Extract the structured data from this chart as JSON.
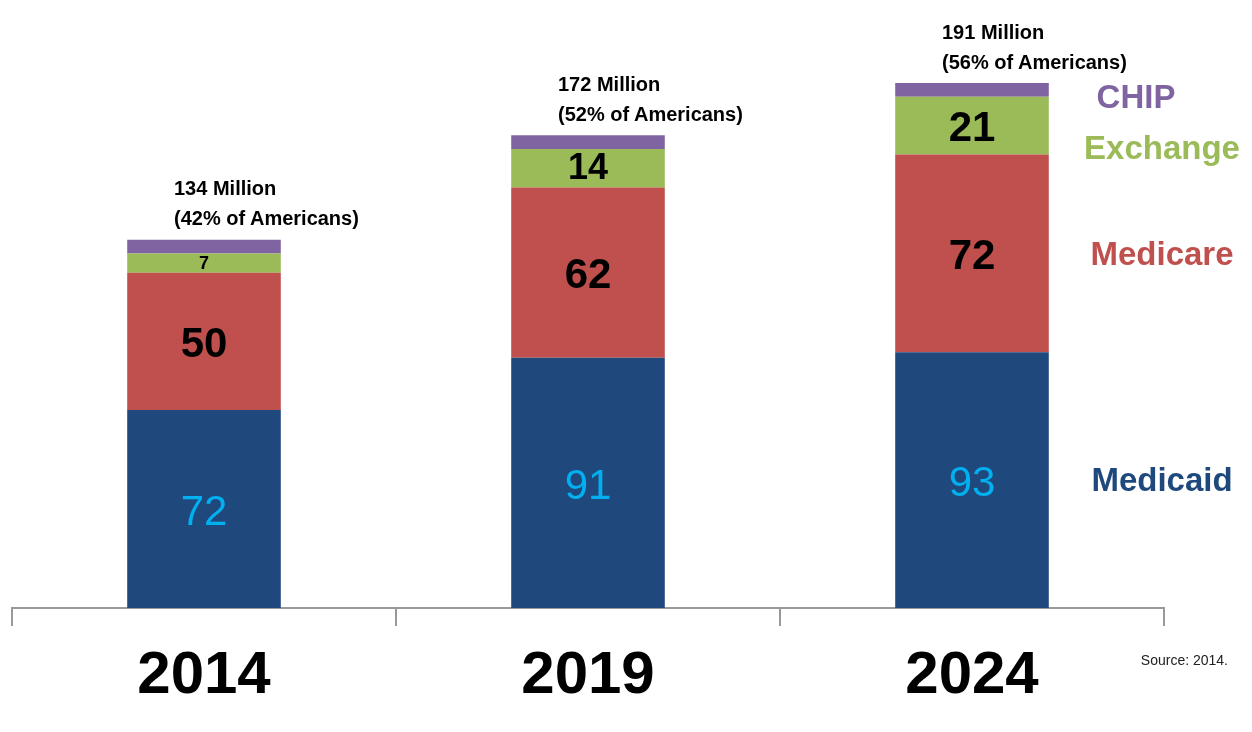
{
  "chart_data": {
    "type": "bar",
    "stacked": true,
    "categories": [
      "2014",
      "2019",
      "2024"
    ],
    "series": [
      {
        "name": "Medicaid",
        "color": "#1f497d",
        "values": [
          72,
          91,
          93
        ],
        "value_labels": [
          "72",
          "91",
          "93"
        ]
      },
      {
        "name": "Medicare",
        "color": "#c0504d",
        "values": [
          50,
          62,
          72
        ],
        "value_labels": [
          "50",
          "62",
          "72"
        ]
      },
      {
        "name": "Exchange",
        "color": "#9bbb59",
        "values": [
          7,
          14,
          21
        ],
        "value_labels": [
          "7",
          "14",
          "21"
        ]
      },
      {
        "name": "CHIP",
        "color": "#8064a2",
        "values": [
          5,
          5,
          5
        ],
        "value_labels": [
          null,
          null,
          null
        ]
      }
    ],
    "totals": [
      "134 Million\n(42% of Americans)",
      "172 Million\n(52% of Americans)",
      "191 Million\n(56% of Americans)"
    ],
    "legend": "right",
    "grid": false,
    "annotations": [
      "Source: 2014."
    ]
  }
}
